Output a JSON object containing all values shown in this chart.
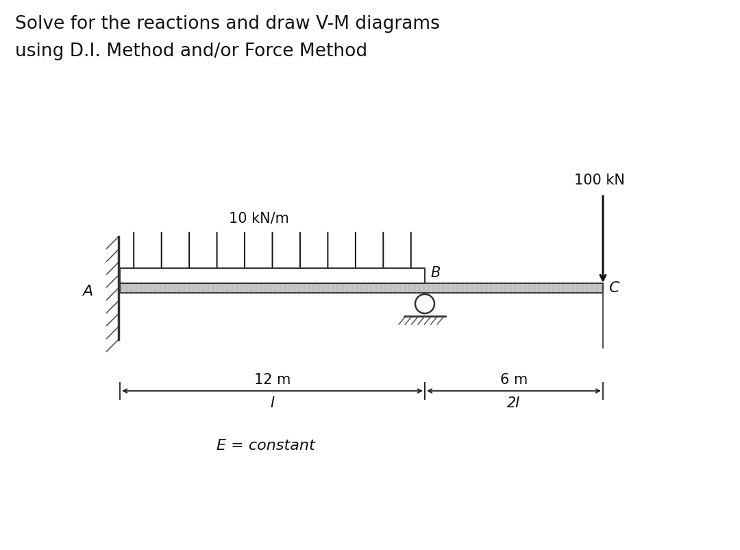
{
  "title_line1": "Solve for the reactions and draw V-M diagrams",
  "title_line2": "using D.I. Method and/or Force Method",
  "bg_color": "#ffffff",
  "label_A": "A",
  "label_B": "B",
  "label_C": "C",
  "dist_load_label": "10 kN/m",
  "point_load_label": "100 kN",
  "span_AB_label": "12 m",
  "span_BC_label": "6 m",
  "moment_AB_label": "I",
  "moment_BC_label": "2I",
  "E_label": "E = constant",
  "num_dist_arrows": 11,
  "arrow_color": "#111111",
  "beam_fill": "#cccccc",
  "beam_edge": "#333333",
  "title_fontsize": 19,
  "label_fontsize": 15,
  "dim_fontsize": 14
}
